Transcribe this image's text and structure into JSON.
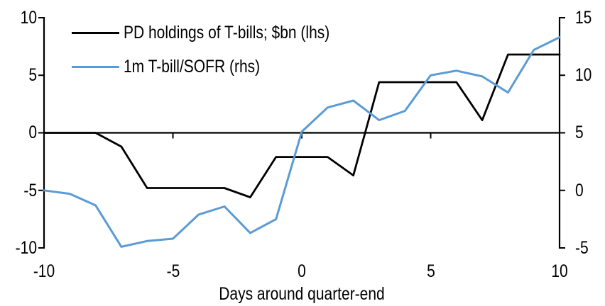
{
  "chart_data": {
    "type": "line",
    "title": "",
    "xlabel": "Days around quarter-end",
    "x": [
      -10,
      -9,
      -8,
      -7,
      -6,
      -5,
      -4,
      -3,
      -2,
      -1,
      0,
      1,
      2,
      3,
      4,
      5,
      6,
      7,
      8,
      9,
      10
    ],
    "series": [
      {
        "name": "PD holdings of T-bills; $bn (lhs)",
        "axis": "left",
        "color": "#000000",
        "values": [
          0,
          0,
          0,
          -1.2,
          -4.8,
          -4.8,
          -4.8,
          -4.8,
          -5.6,
          -2.1,
          -2.1,
          -2.1,
          -3.7,
          4.4,
          4.4,
          4.4,
          4.4,
          1.1,
          6.8,
          6.8,
          6.8
        ]
      },
      {
        "name": "1m T-bill/SOFR (rhs)",
        "axis": "right",
        "color": "#5B9BD5",
        "values": [
          0,
          -0.3,
          -1.3,
          -4.9,
          -4.4,
          -4.2,
          -2.1,
          -1.4,
          -3.7,
          -2.5,
          5.1,
          7.2,
          7.8,
          6.1,
          6.9,
          10,
          10.4,
          9.9,
          8.5,
          12.2,
          13.3
        ]
      }
    ],
    "left_axis": {
      "min": -10,
      "max": 10,
      "ticks": [
        10,
        5,
        0,
        -5,
        -10
      ],
      "tick_labels": [
        "10",
        "5",
        "0",
        "-5",
        "-10"
      ]
    },
    "right_axis": {
      "min": -5,
      "max": 15,
      "ticks": [
        15,
        10,
        5,
        0,
        -5
      ],
      "tick_labels": [
        "15",
        "10",
        "5",
        "0",
        "-5"
      ]
    },
    "x_axis": {
      "ticks": [
        -10,
        -5,
        0,
        5,
        10
      ],
      "tick_labels": [
        "-10",
        "-5",
        "0",
        "5",
        "10"
      ]
    },
    "grid": false,
    "legend_position": "top-left"
  }
}
